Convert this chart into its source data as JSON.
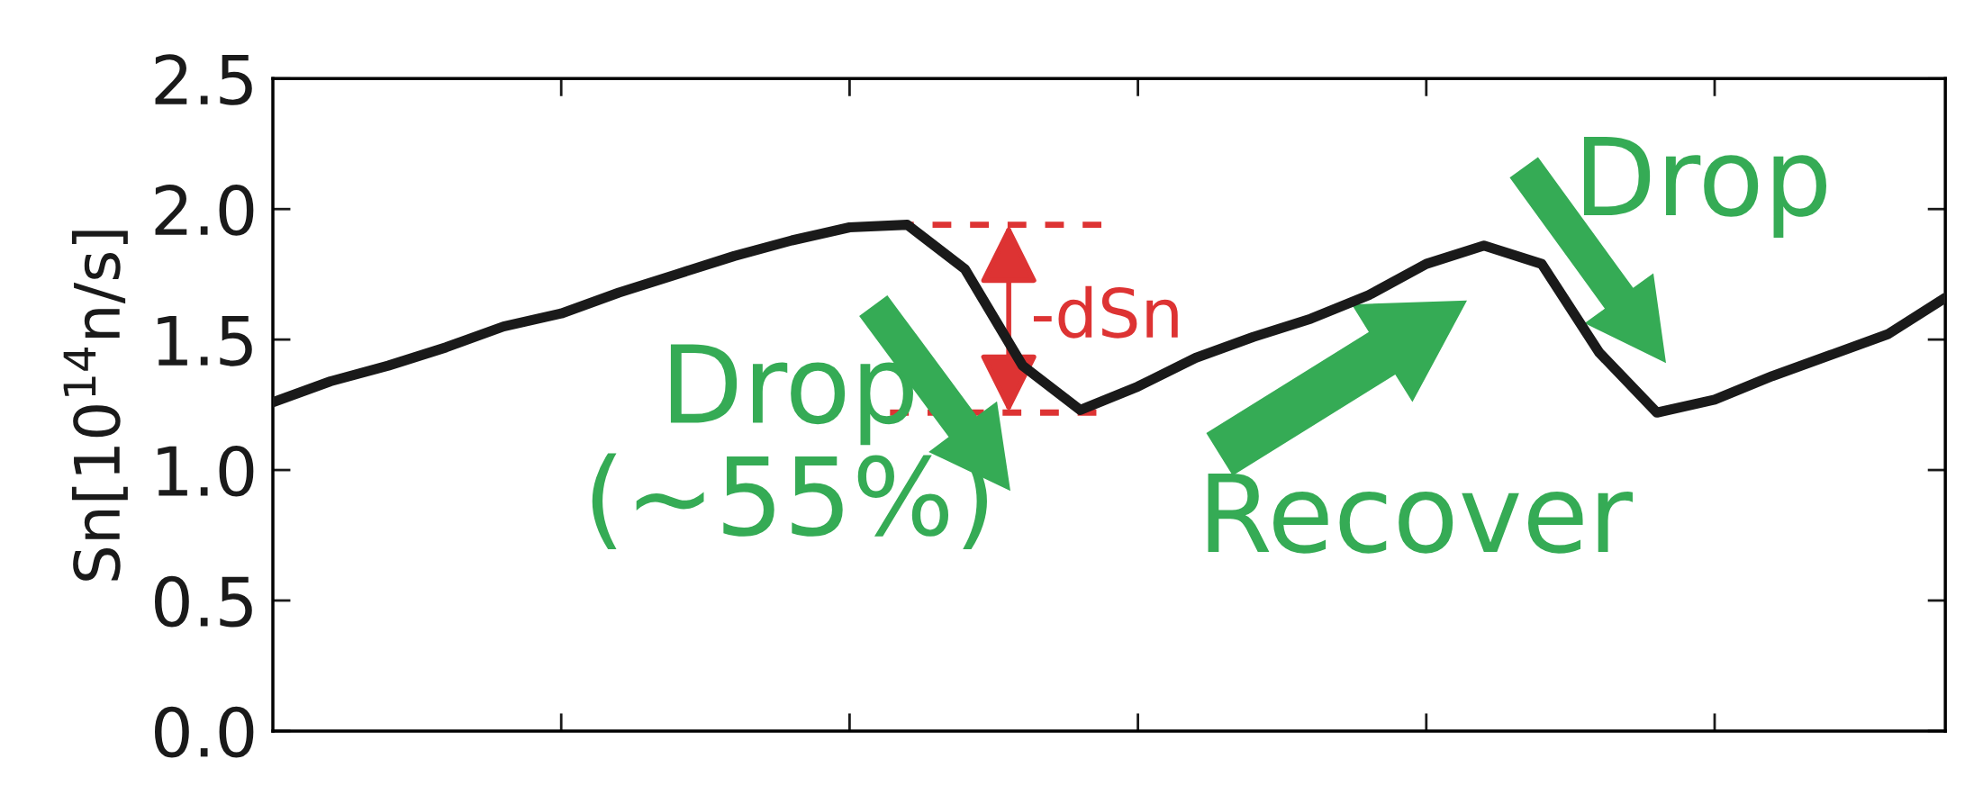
{
  "chart_data": {
    "type": "line",
    "ylabel": "Sn[10$^{14}$n/s]",
    "categories": [
      null,
      null,
      null,
      null,
      null,
      null,
      null,
      null,
      null,
      null,
      null,
      null,
      null,
      null,
      null,
      null,
      null,
      null,
      null,
      null,
      null,
      null,
      null,
      null,
      null,
      null,
      null,
      null,
      null,
      null
    ],
    "series": [
      {
        "color": "#1a1a1a",
        "values": [
          1.26,
          1.34,
          1.4,
          1.47,
          1.55,
          1.6,
          1.68,
          1.75,
          1.82,
          1.88,
          1.93,
          1.94,
          1.77,
          1.4,
          1.23,
          1.32,
          1.43,
          1.51,
          1.58,
          1.67,
          1.79,
          1.86,
          1.79,
          1.45,
          1.22,
          1.27,
          1.36,
          1.44,
          1.52,
          1.66
        ]
      }
    ],
    "ylim": [
      0,
      2.5
    ],
    "yticks": [
      {
        "value": 0,
        "label": "0.0"
      },
      {
        "value": 0.5,
        "label": "0.5"
      },
      {
        "value": 1,
        "label": "1.0"
      },
      {
        "value": 1.5,
        "label": "1.5"
      },
      {
        "value": 2,
        "label": "2.0"
      },
      {
        "value": 2.5,
        "label": "2.5"
      }
    ],
    "tick_labels": "y",
    "marker": "none",
    "line_style": "solid",
    "annotations": [
      "Drop\n(~55%)",
      "-dSn",
      "Recover",
      "Drop"
    ]
  }
}
